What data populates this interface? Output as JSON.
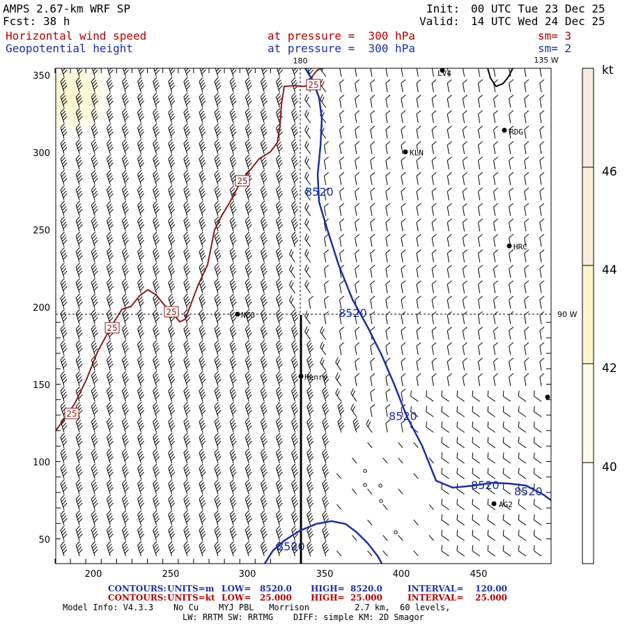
{
  "header": {
    "model_title": "AMPS 2.67-km WRF SP",
    "forecast_label": "Fcst:",
    "forecast_hours": "38 h",
    "init_label": "Init:",
    "init_time": "00 UTC Tue 23 Dec 25",
    "valid_label": "Valid:",
    "valid_time": "14 UTC Wed 24 Dec 25",
    "field1_name": "Horizontal wind speed",
    "field1_level": "at pressure =  300 hPa",
    "field1_smooth": "sm= 3",
    "field2_name": "Geopotential height",
    "field2_level": "at pressure =  300 hPa",
    "field2_smooth": "sm= 2"
  },
  "map": {
    "x_ticks": [
      "200",
      "250",
      "300",
      "350",
      "400",
      "450"
    ],
    "y_ticks": [
      "50",
      "100",
      "150",
      "200",
      "250",
      "300",
      "350"
    ],
    "longitude_labels": [
      "180",
      "135 W",
      "90 W"
    ],
    "stations": [
      {
        "name": "LV4"
      },
      {
        "name": "RDG"
      },
      {
        "name": "KLN"
      },
      {
        "name": "HRC"
      },
      {
        "name": "NCO"
      },
      {
        "name": "Henry"
      },
      {
        "name": "AG2"
      }
    ],
    "height_contour_value": "8520",
    "speed_contour_value": "25",
    "colors": {
      "height_contour": "#1a2fa0",
      "speed_contour": "#8b1a1a",
      "barbs": "#000000",
      "shade_light": "#fdfbe0",
      "shade_mid": "#fbf4c8"
    }
  },
  "colorbar": {
    "unit": "kt",
    "labels": [
      "40",
      "42",
      "44",
      "46"
    ],
    "colors": [
      "#ffffff",
      "#fdfce6",
      "#fbf6cd",
      "#f8f0d8",
      "#f5ebe0"
    ]
  },
  "footer": {
    "contours_height": {
      "label": "CONTOURS:",
      "units": "UNITS=m",
      "low": "LOW=   8520.0",
      "high": "HIGH=  8520.0",
      "interval": "INTERVAL=    120.00"
    },
    "contours_speed": {
      "label": "CONTOURS:",
      "units": "UNITS=kt",
      "low": "LOW=   25.000",
      "high": "HIGH=  25.000",
      "interval": "INTERVAL=    25.000"
    },
    "model_info": "Model Info: V4.3.3    No Cu    MYJ PBL   Morrison         2.7 km,  60 levels,",
    "model_info2": "LW: RRTM SW: RRTMG    DIFF: simple KM: 2D Smagor"
  }
}
